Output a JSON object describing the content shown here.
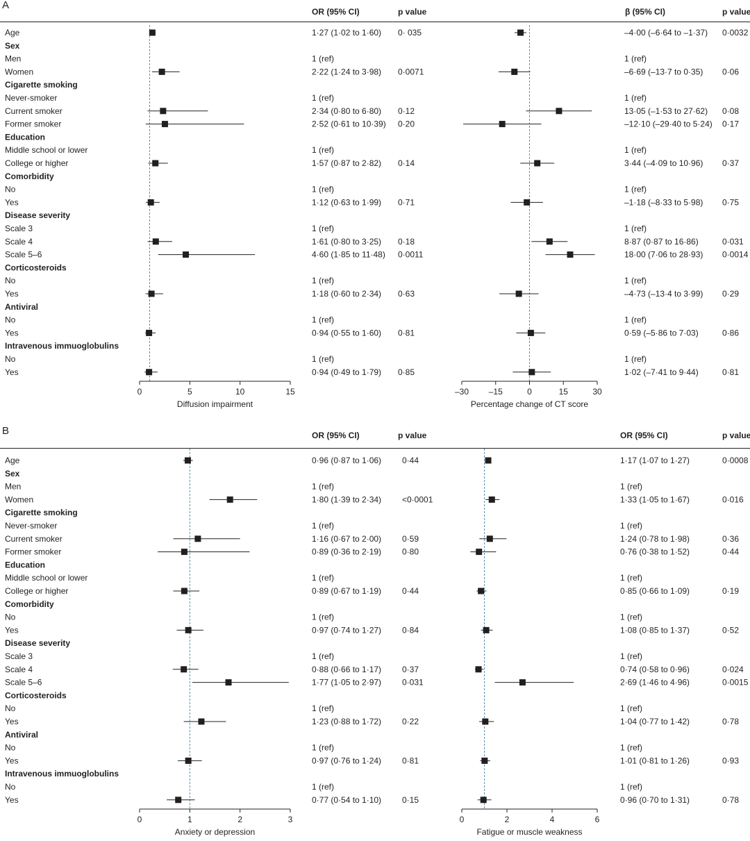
{
  "chart_data": [
    {
      "panel": "A",
      "type": "forest",
      "headers": {
        "left_est": "OR (95% CI)",
        "left_p": "p value",
        "right_est": "β (95% CI)",
        "right_p": "p value"
      },
      "rows": [
        {
          "label": "Age",
          "group": false,
          "L": {
            "est": 1.27,
            "lo": 1.02,
            "hi": 1.6,
            "text": "1·27 (1·02 to 1·60)",
            "p": "0· 035"
          },
          "R": {
            "est": -4.0,
            "lo": -6.64,
            "hi": -1.37,
            "text": "–4·00 (–6·64 to –1·37)",
            "p": "0·0032"
          }
        },
        {
          "label": "Sex",
          "group": true
        },
        {
          "label": "Men",
          "group": false,
          "L": {
            "text": "1 (ref)"
          },
          "R": {
            "text": "1 (ref)"
          }
        },
        {
          "label": "Women",
          "group": false,
          "L": {
            "est": 2.22,
            "lo": 1.24,
            "hi": 3.98,
            "text": "2·22 (1·24 to 3·98)",
            "p": "0·0071"
          },
          "R": {
            "est": -6.69,
            "lo": -13.7,
            "hi": 0.35,
            "text": "–6·69 (–13·7 to 0·35)",
            "p": "0·06"
          }
        },
        {
          "label": "Cigarette smoking",
          "group": true
        },
        {
          "label": "Never-smoker",
          "group": false,
          "L": {
            "text": "1 (ref)"
          },
          "R": {
            "text": "1 (ref)"
          }
        },
        {
          "label": "Current smoker",
          "group": false,
          "L": {
            "est": 2.34,
            "lo": 0.8,
            "hi": 6.8,
            "text": "2·34 (0·80 to 6·80)",
            "p": "0·12"
          },
          "R": {
            "est": 13.05,
            "lo": -1.53,
            "hi": 27.62,
            "text": "13·05 (–1·53 to 27·62)",
            "p": "0·08"
          }
        },
        {
          "label": "Former smoker",
          "group": false,
          "L": {
            "est": 2.52,
            "lo": 0.61,
            "hi": 10.39,
            "text": "2·52 (0·61 to 10·39)",
            "p": "0·20"
          },
          "R": {
            "est": -12.1,
            "lo": -29.4,
            "hi": 5.24,
            "text": "–12·10 (–29·40 to 5·24)",
            "p": "0·17"
          }
        },
        {
          "label": "Education",
          "group": true
        },
        {
          "label": "Middle school or lower",
          "group": false,
          "L": {
            "text": "1 (ref)"
          },
          "R": {
            "text": "1 (ref)"
          }
        },
        {
          "label": "College or higher",
          "group": false,
          "L": {
            "est": 1.57,
            "lo": 0.87,
            "hi": 2.82,
            "text": "1·57 (0·87 to 2·82)",
            "p": "0·14"
          },
          "R": {
            "est": 3.44,
            "lo": -4.09,
            "hi": 10.96,
            "text": "3·44 (–4·09 to 10·96)",
            "p": "0·37"
          }
        },
        {
          "label": "Comorbidity",
          "group": true
        },
        {
          "label": "No",
          "group": false,
          "L": {
            "text": "1 (ref)"
          },
          "R": {
            "text": "1 (ref)"
          }
        },
        {
          "label": "Yes",
          "group": false,
          "L": {
            "est": 1.12,
            "lo": 0.63,
            "hi": 1.99,
            "text": "1·12 (0·63 to 1·99)",
            "p": "0·71"
          },
          "R": {
            "est": -1.18,
            "lo": -8.33,
            "hi": 5.98,
            "text": "–1·18 (–8·33 to 5·98)",
            "p": "0·75"
          }
        },
        {
          "label": "Disease severity",
          "group": true
        },
        {
          "label": "Scale 3",
          "group": false,
          "L": {
            "text": "1 (ref)"
          },
          "R": {
            "text": "1 (ref)"
          }
        },
        {
          "label": "Scale 4",
          "group": false,
          "L": {
            "est": 1.61,
            "lo": 0.8,
            "hi": 3.25,
            "text": "1·61 (0·80 to 3·25)",
            "p": "0·18"
          },
          "R": {
            "est": 8.87,
            "lo": 0.87,
            "hi": 16.86,
            "text": "8·87 (0·87 to 16·86)",
            "p": "0·031"
          }
        },
        {
          "label": "Scale 5–6",
          "group": false,
          "L": {
            "est": 4.6,
            "lo": 1.85,
            "hi": 11.48,
            "text": "4·60 (1·85 to 11·48)",
            "p": "0·0011"
          },
          "R": {
            "est": 18.0,
            "lo": 7.06,
            "hi": 28.93,
            "text": "18·00 (7·06 to 28·93)",
            "p": "0·0014"
          }
        },
        {
          "label": "Corticosteroids",
          "group": true
        },
        {
          "label": "No",
          "group": false,
          "L": {
            "text": "1 (ref)"
          },
          "R": {
            "text": "1 (ref)"
          }
        },
        {
          "label": "Yes",
          "group": false,
          "L": {
            "est": 1.18,
            "lo": 0.6,
            "hi": 2.34,
            "text": "1·18 (0·60 to 2·34)",
            "p": "0·63"
          },
          "R": {
            "est": -4.73,
            "lo": -13.4,
            "hi": 3.99,
            "text": "–4·73 (–13·4 to 3·99)",
            "p": "0·29"
          }
        },
        {
          "label": "Antiviral",
          "group": true
        },
        {
          "label": "No",
          "group": false,
          "L": {
            "text": "1 (ref)"
          },
          "R": {
            "text": "1 (ref)"
          }
        },
        {
          "label": "Yes",
          "group": false,
          "L": {
            "est": 0.94,
            "lo": 0.55,
            "hi": 1.6,
            "text": "0·94 (0·55 to 1·60)",
            "p": "0·81"
          },
          "R": {
            "est": 0.59,
            "lo": -5.86,
            "hi": 7.03,
            "text": "0·59 (–5·86 to 7·03)",
            "p": "0·86"
          }
        },
        {
          "label": "Intravenous immuoglobulins",
          "group": true
        },
        {
          "label": "No",
          "group": false,
          "L": {
            "text": "1 (ref)"
          },
          "R": {
            "text": "1 (ref)"
          }
        },
        {
          "label": "Yes",
          "group": false,
          "L": {
            "est": 0.94,
            "lo": 0.49,
            "hi": 1.79,
            "text": "0·94 (0·49 to 1·79)",
            "p": "0·85"
          },
          "R": {
            "est": 1.02,
            "lo": -7.41,
            "hi": 9.44,
            "text": "1·02 (–7·41 to 9·44)",
            "p": "0·81"
          }
        }
      ],
      "left_axis": {
        "label": "Diffusion impairment",
        "ticks": [
          0,
          5,
          10,
          15
        ],
        "xlim": [
          0,
          15
        ],
        "ref": 1
      },
      "right_axis": {
        "label": "Percentage change of CT score",
        "ticks": [
          -30,
          -15,
          0,
          15,
          30
        ],
        "xlim": [
          -30,
          30
        ],
        "ref": 0
      }
    },
    {
      "panel": "B",
      "type": "forest",
      "headers": {
        "left_est": "OR (95% CI)",
        "left_p": "p value",
        "right_est": "OR (95% CI)",
        "right_p": "p value"
      },
      "rows": [
        {
          "label": "Age",
          "group": false,
          "L": {
            "est": 0.96,
            "lo": 0.87,
            "hi": 1.06,
            "text": "0·96 (0·87 to 1·06)",
            "p": "0·44"
          },
          "R": {
            "est": 1.17,
            "lo": 1.07,
            "hi": 1.27,
            "text": "1·17 (1·07 to 1·27)",
            "p": "0·0008"
          }
        },
        {
          "label": "Sex",
          "group": true
        },
        {
          "label": "Men",
          "group": false,
          "L": {
            "text": "1 (ref)"
          },
          "R": {
            "text": "1 (ref)"
          }
        },
        {
          "label": "Women",
          "group": false,
          "L": {
            "est": 1.8,
            "lo": 1.39,
            "hi": 2.34,
            "text": "1·80 (1·39 to 2·34)",
            "p": "<0·0001"
          },
          "R": {
            "est": 1.33,
            "lo": 1.05,
            "hi": 1.67,
            "text": "1·33 (1·05 to 1·67)",
            "p": "0·016"
          }
        },
        {
          "label": "Cigarette smoking",
          "group": true
        },
        {
          "label": "Never-smoker",
          "group": false,
          "L": {
            "text": "1 (ref)"
          },
          "R": {
            "text": "1 (ref)"
          }
        },
        {
          "label": "Current smoker",
          "group": false,
          "L": {
            "est": 1.16,
            "lo": 0.67,
            "hi": 2.0,
            "text": "1·16 (0·67 to 2·00)",
            "p": "0·59"
          },
          "R": {
            "est": 1.24,
            "lo": 0.78,
            "hi": 1.98,
            "text": "1·24 (0·78 to 1·98)",
            "p": "0·36"
          }
        },
        {
          "label": "Former smoker",
          "group": false,
          "L": {
            "est": 0.89,
            "lo": 0.36,
            "hi": 2.19,
            "text": "0·89 (0·36 to 2·19)",
            "p": "0·80"
          },
          "R": {
            "est": 0.76,
            "lo": 0.38,
            "hi": 1.52,
            "text": "0·76 (0·38 to 1·52)",
            "p": "0·44"
          }
        },
        {
          "label": "Education",
          "group": true
        },
        {
          "label": "Middle school or lower",
          "group": false,
          "L": {
            "text": "1 (ref)"
          },
          "R": {
            "text": "1 (ref)"
          }
        },
        {
          "label": "College or higher",
          "group": false,
          "L": {
            "est": 0.89,
            "lo": 0.67,
            "hi": 1.19,
            "text": "0·89 (0·67 to 1·19)",
            "p": "0·44"
          },
          "R": {
            "est": 0.85,
            "lo": 0.66,
            "hi": 1.09,
            "text": "0·85 (0·66 to 1·09)",
            "p": "0·19"
          }
        },
        {
          "label": "Comorbidity",
          "group": true
        },
        {
          "label": "No",
          "group": false,
          "L": {
            "text": "1 (ref)"
          },
          "R": {
            "text": "1 (ref)"
          }
        },
        {
          "label": "Yes",
          "group": false,
          "L": {
            "est": 0.97,
            "lo": 0.74,
            "hi": 1.27,
            "text": "0·97 (0·74 to 1·27)",
            "p": "0·84"
          },
          "R": {
            "est": 1.08,
            "lo": 0.85,
            "hi": 1.37,
            "text": "1·08 (0·85 to 1·37)",
            "p": "0·52"
          }
        },
        {
          "label": "Disease severity",
          "group": true
        },
        {
          "label": "Scale 3",
          "group": false,
          "L": {
            "text": "1 (ref)"
          },
          "R": {
            "text": "1 (ref)"
          }
        },
        {
          "label": "Scale 4",
          "group": false,
          "L": {
            "est": 0.88,
            "lo": 0.66,
            "hi": 1.17,
            "text": "0·88 (0·66 to 1·17)",
            "p": "0·37"
          },
          "R": {
            "est": 0.74,
            "lo": 0.58,
            "hi": 0.96,
            "text": "0·74 (0·58 to 0·96)",
            "p": "0·024"
          }
        },
        {
          "label": "Scale 5–6",
          "group": false,
          "L": {
            "est": 1.77,
            "lo": 1.05,
            "hi": 2.97,
            "text": "1·77 (1·05 to 2·97)",
            "p": "0·031"
          },
          "R": {
            "est": 2.69,
            "lo": 1.46,
            "hi": 4.96,
            "text": "2·69 (1·46 to 4·96)",
            "p": "0·0015"
          }
        },
        {
          "label": "Corticosteroids",
          "group": true
        },
        {
          "label": "No",
          "group": false,
          "L": {
            "text": "1 (ref)"
          },
          "R": {
            "text": "1 (ref)"
          }
        },
        {
          "label": "Yes",
          "group": false,
          "L": {
            "est": 1.23,
            "lo": 0.88,
            "hi": 1.72,
            "text": "1·23 (0·88 to 1·72)",
            "p": "0·22"
          },
          "R": {
            "est": 1.04,
            "lo": 0.77,
            "hi": 1.42,
            "text": "1·04 (0·77 to 1·42)",
            "p": "0·78"
          }
        },
        {
          "label": "Antiviral",
          "group": true
        },
        {
          "label": "No",
          "group": false,
          "L": {
            "text": "1 (ref)"
          },
          "R": {
            "text": "1 (ref)"
          }
        },
        {
          "label": "Yes",
          "group": false,
          "L": {
            "est": 0.97,
            "lo": 0.76,
            "hi": 1.24,
            "text": "0·97 (0·76 to 1·24)",
            "p": "0·81"
          },
          "R": {
            "est": 1.01,
            "lo": 0.81,
            "hi": 1.26,
            "text": "1·01 (0·81 to 1·26)",
            "p": "0·93"
          }
        },
        {
          "label": "Intravenous immuoglobulins",
          "group": true
        },
        {
          "label": "No",
          "group": false,
          "L": {
            "text": "1 (ref)"
          },
          "R": {
            "text": "1 (ref)"
          }
        },
        {
          "label": "Yes",
          "group": false,
          "L": {
            "est": 0.77,
            "lo": 0.54,
            "hi": 1.1,
            "text": "0·77 (0·54 to 1·10)",
            "p": "0·15"
          },
          "R": {
            "est": 0.96,
            "lo": 0.7,
            "hi": 1.31,
            "text": "0·96 (0·70 to 1·31)",
            "p": "0·78"
          }
        }
      ],
      "left_axis": {
        "label": "Anxiety or depression",
        "ticks": [
          0,
          1,
          2,
          3
        ],
        "xlim": [
          0,
          3
        ],
        "ref": 1
      },
      "right_axis": {
        "label": "Fatigue or muscle weakness",
        "ticks": [
          0,
          2,
          4,
          6
        ],
        "xlim": [
          0,
          6
        ],
        "ref": 1
      }
    }
  ],
  "style": {
    "ink": "#231f20",
    "ref_line": "#5b8fa8"
  }
}
